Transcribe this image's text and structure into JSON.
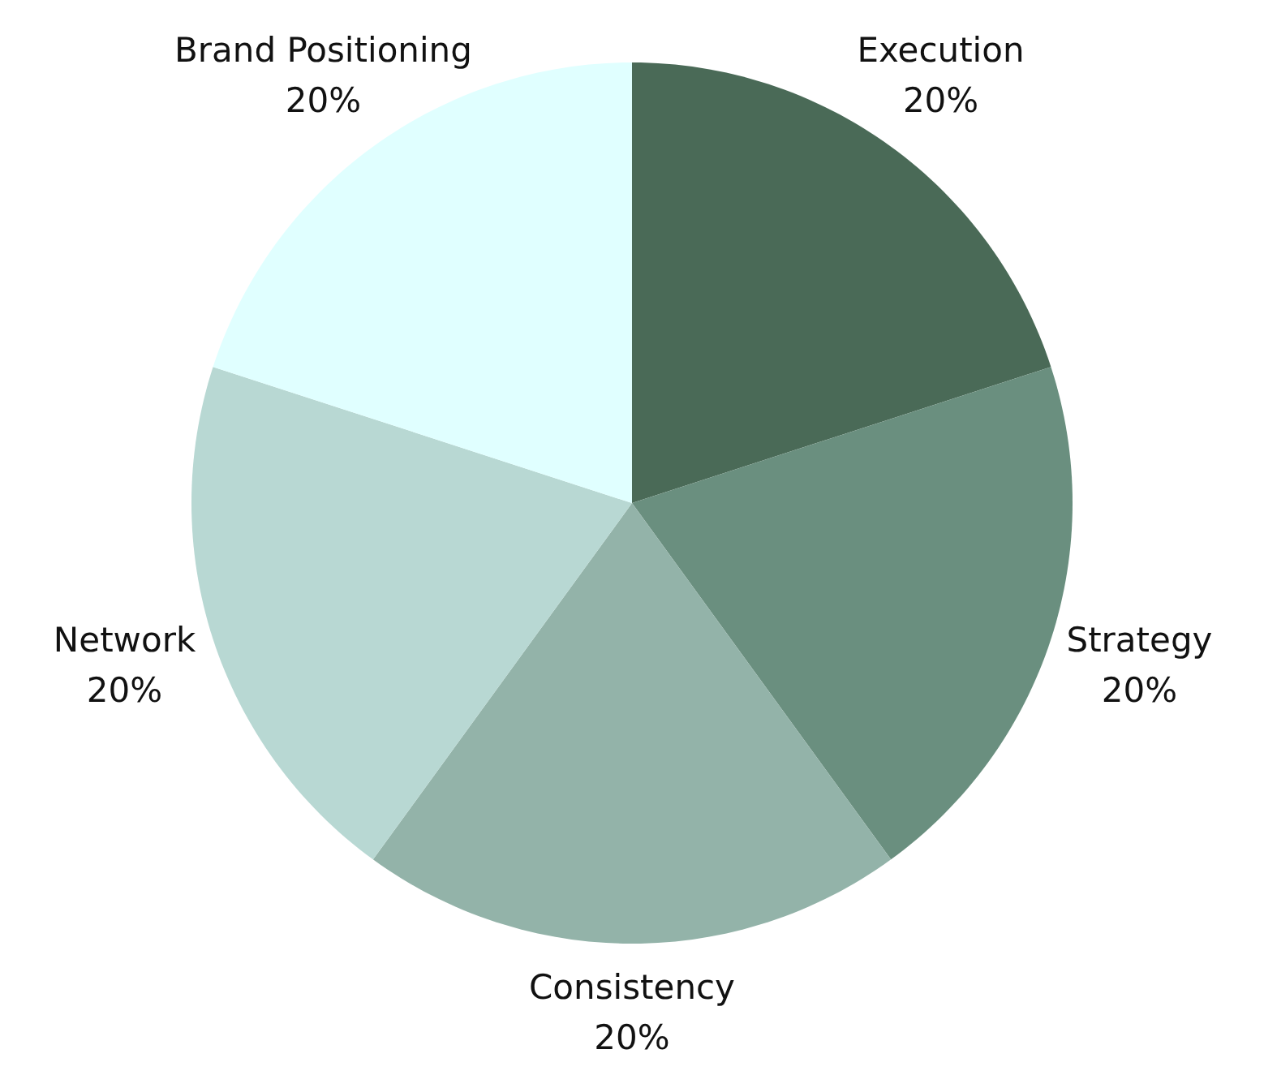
{
  "chart_data": {
    "type": "pie",
    "categories": [
      "Execution",
      "Strategy",
      "Consistency",
      "Network",
      "Brand Positioning"
    ],
    "values": [
      20,
      20,
      20,
      20,
      20
    ],
    "colors": [
      "#4a6a57",
      "#6a8f7f",
      "#93b3a9",
      "#b8d8d3",
      "#e0ffff"
    ],
    "value_labels": [
      "20%",
      "20%",
      "20%",
      "20%",
      "20%"
    ],
    "legend": false
  }
}
